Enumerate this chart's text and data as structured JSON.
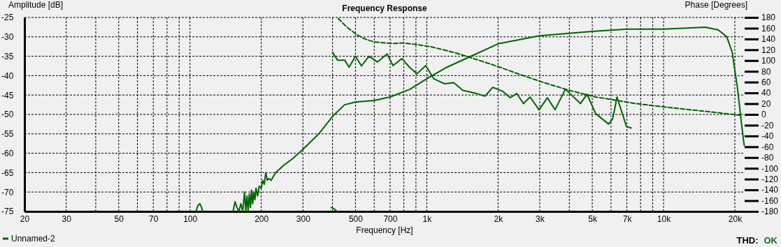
{
  "chart_data": {
    "type": "line",
    "title": "Frequency Response",
    "xlabel": "Frequency [Hz]",
    "ylabel": "Amplitude [dB]",
    "y2label": "Phase [Degrees]",
    "log": "x",
    "grid": true,
    "legend": "bottom left",
    "marker": "none",
    "annotations": [
      "THD:",
      "OK"
    ],
    "xlim": [
      20,
      22000
    ],
    "xticks": [
      20,
      30,
      {
        "value": 40,
        "label": null
      },
      50,
      {
        "value": 60,
        "label": null
      },
      70,
      {
        "value": 80,
        "label": null
      },
      {
        "value": 90,
        "label": null
      },
      100,
      200,
      300,
      {
        "value": 400,
        "label": null
      },
      500,
      {
        "value": 600,
        "label": null
      },
      700,
      {
        "value": 800,
        "label": null
      },
      {
        "value": 900,
        "label": null
      },
      {
        "value": 1000,
        "label": "1k"
      },
      {
        "value": 2000,
        "label": "2k"
      },
      {
        "value": 3000,
        "label": "3k"
      },
      {
        "value": 4000,
        "label": null
      },
      {
        "value": 5000,
        "label": "5k"
      },
      {
        "value": 6000,
        "label": null
      },
      {
        "value": 7000,
        "label": "7k"
      },
      {
        "value": 8000,
        "label": null
      },
      {
        "value": 9000,
        "label": null
      },
      {
        "value": 10000,
        "label": "10k"
      },
      {
        "value": 20000,
        "label": "20k"
      }
    ],
    "ylim": [
      -75,
      -25
    ],
    "yticks": [
      -25,
      -30,
      -35,
      -40,
      -45,
      -50,
      -55,
      -60,
      -65,
      -70,
      -75
    ],
    "y2lim": [
      -180,
      180
    ],
    "y2ticks": [
      180,
      160,
      140,
      120,
      100,
      80,
      60,
      40,
      20,
      0,
      -20,
      -40,
      -60,
      -80,
      -100,
      -120,
      -140,
      -160,
      -180
    ],
    "series": [
      {
        "name": "Unnamed-2",
        "color": "#006400",
        "line_style": "solid",
        "x": [
          106,
          108,
          110,
          112,
          113,
          null,
          152,
          155,
          158,
          161,
          164,
          167,
          170,
          172,
          174,
          176,
          178,
          180,
          182,
          184,
          186,
          188,
          190,
          193,
          196,
          200,
          203,
          206,
          209,
          212,
          215,
          220,
          230,
          250,
          270,
          300,
          350,
          400,
          450,
          500,
          600,
          700,
          850,
          1000,
          1200,
          1500,
          2000,
          3000,
          5000,
          7000,
          10000,
          15000,
          17000,
          18500,
          19500,
          20500,
          21300,
          21900
        ],
        "values": [
          -75,
          -73.5,
          -73,
          -74,
          -75,
          null,
          -75,
          -72.5,
          -74,
          -75,
          -73,
          -75,
          -70,
          -75,
          -71,
          -75,
          -70.5,
          -74,
          -69.5,
          -73,
          -70,
          -72,
          -69,
          -71,
          -68.5,
          -69,
          -67,
          -68,
          -65,
          -67,
          -66.5,
          -67,
          -65,
          -63,
          -61.5,
          -59,
          -55,
          -50.5,
          -47.5,
          -46.8,
          -46.4,
          -45.5,
          -43.5,
          -40.8,
          -38,
          -35.3,
          -31.8,
          -29.7,
          -28.6,
          -28,
          -28,
          -27.5,
          -28.2,
          -30,
          -34,
          -43,
          -52,
          -58
        ]
      },
      {
        "color": "#006400",
        "line_style": "solid",
        "x": [
          400,
          420,
          450,
          470,
          500,
          530,
          570,
          619,
          680,
          720,
          785,
          850,
          910,
          990,
          1070,
          1190,
          1300,
          1420,
          1600,
          1760,
          1900,
          2100,
          2250,
          2400,
          2560,
          2730,
          2980,
          3230,
          3480,
          3850,
          4460,
          4750,
          5170,
          5860,
          6100,
          6360,
          6970,
          7300
        ],
        "values": [
          -34,
          -36,
          -36,
          -37.8,
          -35,
          -37.5,
          -35,
          -36.5,
          -34.4,
          -37.4,
          -35.6,
          -38,
          -39.5,
          -37.4,
          -40.8,
          -42.1,
          -41.8,
          -43.8,
          -44.5,
          -45.3,
          -43,
          -44.1,
          -45.7,
          -44.6,
          -47.2,
          -45.5,
          -48.8,
          -45.7,
          -48.8,
          -43.5,
          -47.2,
          -44.8,
          -49.8,
          -52.5,
          -51.1,
          -45.5,
          -53.1,
          -53.5
        ]
      },
      {
        "color": "#006400",
        "line_style": "dashed",
        "x": [
          423,
          460,
          508,
          550,
          600,
          706,
          800,
          910,
          1050,
          1300,
          1560,
          2010,
          2500,
          3090,
          4000,
          5170,
          7640,
          10500,
          15000,
          21000
        ],
        "values": [
          -25.3,
          -27.5,
          -29.5,
          -30.6,
          -31.3,
          -31.7,
          -31.6,
          -32,
          -32.6,
          -34,
          -35.5,
          -37.7,
          -39.8,
          -41.7,
          -43.8,
          -45.5,
          -47.2,
          -48.2,
          -49.2,
          -50.2
        ]
      },
      {
        "color": "#006400",
        "line_style": "solid",
        "x": [
          395,
          405,
          418
        ],
        "values": [
          -74,
          -74.3,
          -75
        ]
      }
    ]
  }
}
